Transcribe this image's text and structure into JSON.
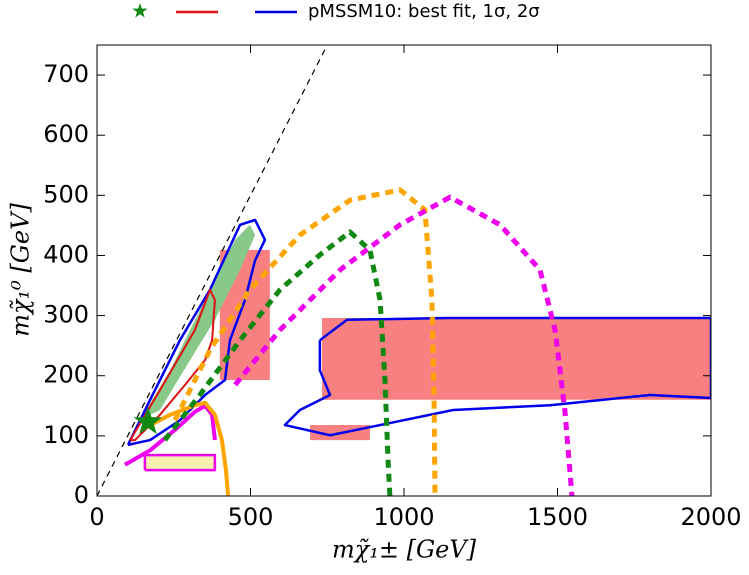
{
  "chart_data": {
    "type": "line",
    "legend_label": "pMSSM10: best fit, 1σ, 2σ",
    "xlabel": "mχ̃₁± [GeV]",
    "ylabel": "mχ̃₁⁰ [GeV]",
    "xlim": [
      0,
      2000
    ],
    "ylim": [
      0,
      750
    ],
    "xticks": [
      0,
      500,
      1000,
      1500,
      2000
    ],
    "yticks": [
      0,
      100,
      200,
      300,
      400,
      500,
      600,
      700
    ],
    "series": [
      {
        "kind": "area",
        "color": "#f88080",
        "x": [
          733,
          2000,
          2000,
          733
        ],
        "y": [
          160,
          160,
          296,
          296
        ]
      },
      {
        "kind": "area",
        "color": "#f88080",
        "x": [
          400,
          563,
          563,
          400
        ],
        "y": [
          193,
          193,
          409,
          409
        ]
      },
      {
        "kind": "area",
        "color": "#f88080",
        "x": [
          694,
          889,
          889,
          694
        ],
        "y": [
          93,
          93,
          118,
          118
        ]
      },
      {
        "kind": "area",
        "color": "#f8f0b0",
        "x": [
          156,
          384,
          384,
          156
        ],
        "y": [
          43,
          43,
          68,
          68
        ]
      },
      {
        "kind": "area",
        "color": "#88c888",
        "x": [
          140,
          238,
          335,
          450,
          498,
          515,
          466,
          384,
          303,
          205
        ],
        "y": [
          126,
          209,
          309,
          426,
          451,
          434,
          376,
          293,
          226,
          143
        ]
      },
      {
        "kind": "line",
        "color": "#000000",
        "dash": "6,5",
        "width": 1.2,
        "x": [
          0,
          750
        ],
        "y": [
          0,
          750
        ]
      },
      {
        "kind": "line",
        "color": "#0000ee",
        "width": 2.5,
        "x": [
          101,
          173,
          270,
          368,
          466,
          515,
          547,
          515,
          482,
          433,
          417,
          352,
          270,
          173,
          101
        ],
        "y": [
          85,
          160,
          259,
          343,
          451,
          459,
          426,
          392,
          326,
          259,
          193,
          168,
          126,
          93,
          85
        ]
      },
      {
        "kind": "line",
        "color": "#0000ee",
        "width": 2.5,
        "x": [
          726,
          814,
          1140,
          1629,
          2000,
          2000,
          1801,
          1476,
          1160,
          922,
          759,
          612,
          661,
          759,
          726,
          726
        ],
        "y": [
          259,
          293,
          296,
          296,
          296,
          163,
          168,
          151,
          143,
          118,
          101,
          118,
          143,
          168,
          209,
          259
        ]
      },
      {
        "kind": "line",
        "color": "#dd1111",
        "width": 2,
        "x": [
          108,
          205,
          319,
          368,
          384,
          375,
          352,
          287,
          205,
          124,
          108
        ],
        "y": [
          93,
          176,
          276,
          343,
          326,
          259,
          226,
          185,
          135,
          93,
          93
        ]
      },
      {
        "kind": "line",
        "color": "#ee00ee",
        "width": 2.5,
        "x": [
          156,
          384,
          384,
          156,
          156
        ],
        "y": [
          43,
          43,
          68,
          68,
          43
        ]
      },
      {
        "kind": "line",
        "color": "#ee00ee",
        "width": 4,
        "x": [
          91,
          173,
          254,
          319,
          352,
          375,
          384
        ],
        "y": [
          52,
          76,
          110,
          140,
          150,
          135,
          93
        ]
      },
      {
        "kind": "line",
        "color": "#ffa500",
        "width": 4,
        "x": [
          173,
          238,
          319,
          352,
          384,
          407,
          420,
          427
        ],
        "y": [
          118,
          135,
          151,
          155,
          135,
          93,
          43,
          0
        ]
      },
      {
        "kind": "line",
        "color": "#118811",
        "dash": "8,6",
        "width": 5,
        "x": [
          221,
          335,
          466,
          596,
          726,
          824,
          889,
          922,
          938,
          948,
          954
        ],
        "y": [
          93,
          168,
          259,
          343,
          401,
          439,
          409,
          326,
          193,
          60,
          0
        ]
      },
      {
        "kind": "line",
        "color": "#ffa500",
        "dash": "8,6",
        "width": 5,
        "x": [
          254,
          368,
          498,
          661,
          824,
          987,
          1068,
          1091,
          1098,
          1101
        ],
        "y": [
          126,
          243,
          343,
          434,
          492,
          509,
          476,
          326,
          160,
          0
        ]
      },
      {
        "kind": "line",
        "color": "#ee00ee",
        "dash": "8,6",
        "width": 5,
        "x": [
          450,
          596,
          792,
          987,
          1150,
          1313,
          1443,
          1492,
          1524,
          1547
        ],
        "y": [
          185,
          276,
          376,
          451,
          497,
          451,
          376,
          276,
          143,
          0
        ]
      }
    ],
    "best_fit": {
      "x": 166,
      "y": 123,
      "color": "#118811"
    }
  }
}
